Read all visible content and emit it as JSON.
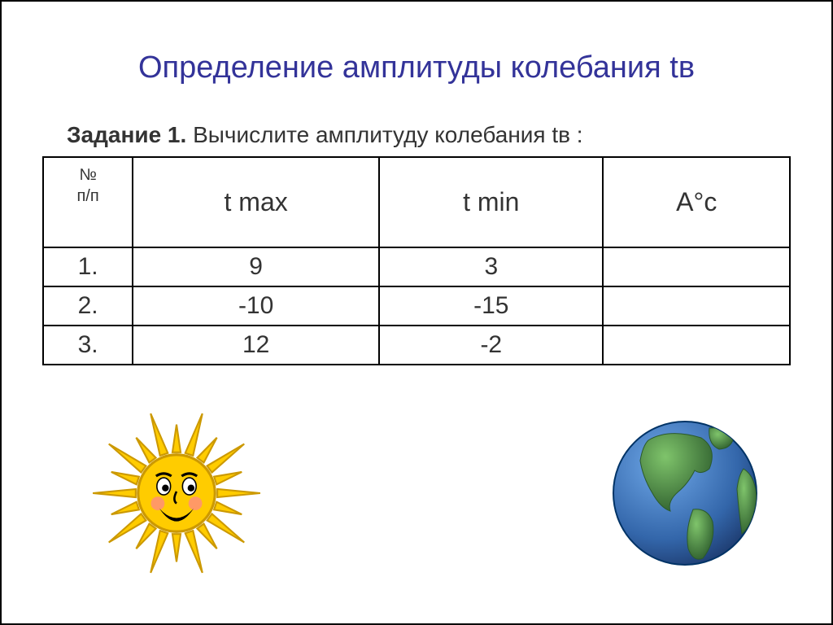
{
  "title": "Определение амплитуды колебания tв",
  "task_label": "Задание 1.",
  "task_text": " Вычислите амплитуду колебания tв :",
  "table": {
    "header": {
      "idx": "№\nп/п",
      "tmax": "t max",
      "tmin": "t min",
      "amp": "А°с"
    },
    "rows": [
      {
        "n": "1.",
        "tmax": "9",
        "tmin": "3",
        "amp": ""
      },
      {
        "n": "2.",
        "tmax": "-10",
        "tmin": "-15",
        "amp": ""
      },
      {
        "n": "3.",
        "tmax": "12",
        "tmin": "-2",
        "amp": ""
      }
    ]
  },
  "icons": {
    "sun": {
      "body": "#FFCC00",
      "stroke": "#CC9900",
      "face": "#000000",
      "cheek": "#FF9966",
      "eye_white": "#FFFFFF"
    },
    "globe": {
      "ocean": "#3366AA",
      "land": "#5B9B4A",
      "shade": "#2B5A2B",
      "outline": "#003366"
    }
  }
}
